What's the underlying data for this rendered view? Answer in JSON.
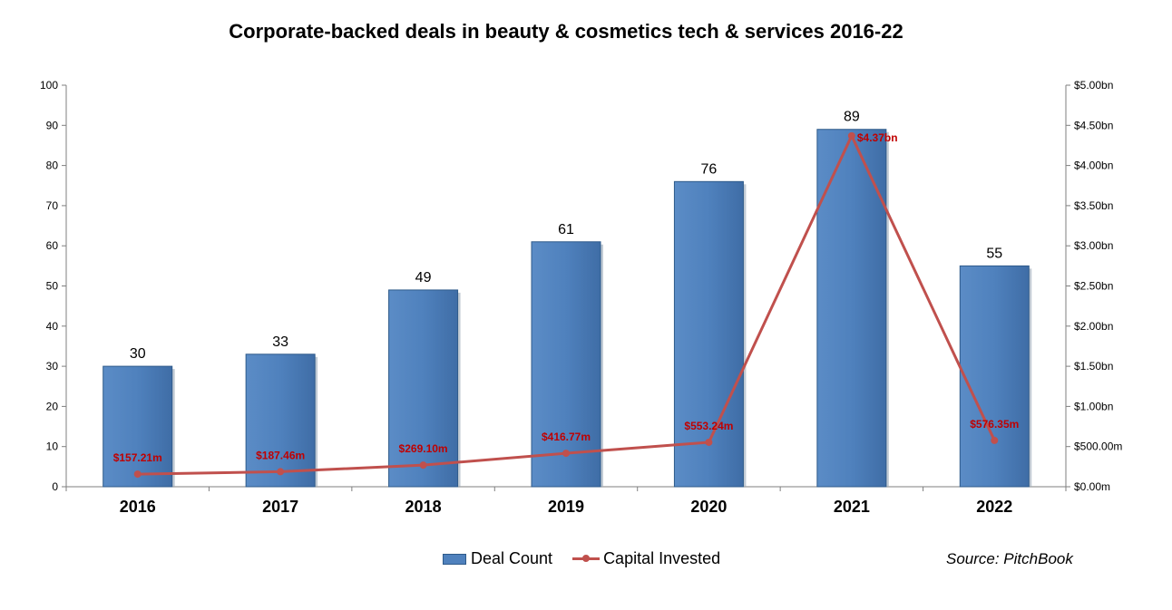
{
  "colors": {
    "bar": "#4f81bd",
    "bar_edge": "#2e5a8a",
    "line": "#c0504d",
    "line_label": "#c00000",
    "axis": "#7f7f7f"
  },
  "chart_data": {
    "type": "bar",
    "title": "Corporate-backed deals in beauty & cosmetics tech & services 2016-22",
    "categories": [
      "2016",
      "2017",
      "2018",
      "2019",
      "2020",
      "2021",
      "2022"
    ],
    "series": [
      {
        "name": "Deal Count",
        "type": "bar",
        "axis": "left",
        "values": [
          30,
          33,
          49,
          61,
          76,
          89,
          55
        ],
        "labels": [
          "30",
          "33",
          "49",
          "61",
          "76",
          "89",
          "55"
        ]
      },
      {
        "name": "Capital Invested",
        "type": "line",
        "axis": "right",
        "unit": "$m",
        "values": [
          157.21,
          187.46,
          269.1,
          416.77,
          553.24,
          4370,
          576.35
        ],
        "labels": [
          "$157.21m",
          "$187.46m",
          "$269.10m",
          "$416.77m",
          "$553.24m",
          "$4.37bn",
          "$576.35m"
        ]
      }
    ],
    "y_left": {
      "range": [
        0,
        100
      ],
      "ticks": [
        0,
        10,
        20,
        30,
        40,
        50,
        60,
        70,
        80,
        90,
        100
      ],
      "tick_labels": [
        "0",
        "10",
        "20",
        "30",
        "40",
        "50",
        "60",
        "70",
        "80",
        "90",
        "100"
      ]
    },
    "y_right": {
      "range": [
        0,
        5000
      ],
      "ticks": [
        0,
        500,
        1000,
        1500,
        2000,
        2500,
        3000,
        3500,
        4000,
        4500,
        5000
      ],
      "tick_labels": [
        "$0.00m",
        "$500.00m",
        "$1.00bn",
        "$1.50bn",
        "$2.00bn",
        "$2.50bn",
        "$3.00bn",
        "$3.50bn",
        "$4.00bn",
        "$4.50bn",
        "$5.00bn"
      ]
    },
    "grid": false,
    "legend": "bottom-center",
    "source": "Source: PitchBook"
  }
}
